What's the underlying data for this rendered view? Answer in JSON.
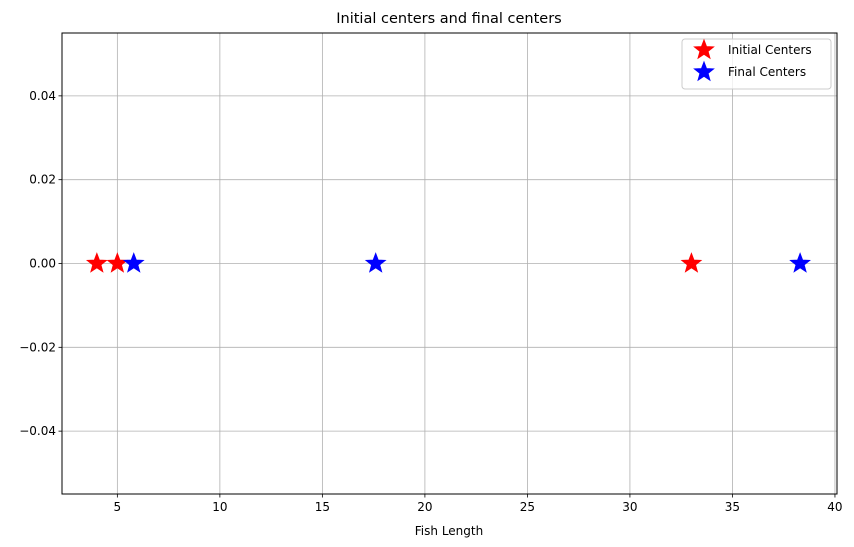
{
  "chart_data": {
    "type": "scatter",
    "title": "Initial centers and final centers",
    "xlabel": "Fish Length",
    "ylabel": "",
    "xlim": [
      2.3,
      40.1
    ],
    "ylim": [
      -0.055,
      0.055
    ],
    "xticks": [
      5,
      10,
      15,
      20,
      25,
      30,
      35,
      40
    ],
    "yticks": [
      -0.04,
      -0.02,
      0.0,
      0.02,
      0.04
    ],
    "ytick_labels": [
      "−0.04",
      "−0.02",
      "0.00",
      "0.02",
      "0.04"
    ],
    "grid": true,
    "legend_position": "top-right",
    "series": [
      {
        "name": "Initial Centers",
        "color": "#ff0000",
        "marker": "star",
        "points": [
          [
            4,
            0
          ],
          [
            5,
            0
          ],
          [
            33,
            0
          ]
        ]
      },
      {
        "name": "Final Centers",
        "color": "#0000ff",
        "marker": "star",
        "points": [
          [
            5.8,
            0
          ],
          [
            17.6,
            0
          ],
          [
            38.3,
            0
          ]
        ]
      }
    ]
  }
}
